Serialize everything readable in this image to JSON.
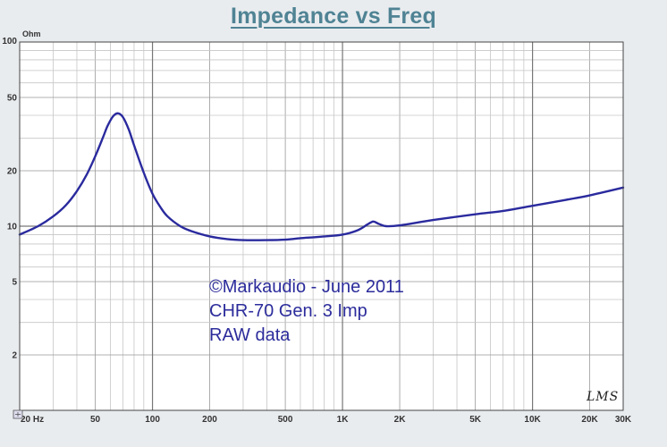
{
  "chart_data": {
    "type": "line",
    "title": "Impedance vs Freq",
    "ylabel": "Ohm",
    "xlabel": "",
    "xscale": "log",
    "yscale": "log",
    "xlim": [
      20,
      30000
    ],
    "ylim": [
      1,
      100
    ],
    "grid": true,
    "x_tick_labels": [
      {
        "value": 20,
        "label": "20 Hz"
      },
      {
        "value": 50,
        "label": "50"
      },
      {
        "value": 100,
        "label": "100"
      },
      {
        "value": 200,
        "label": "200"
      },
      {
        "value": 500,
        "label": "500"
      },
      {
        "value": 1000,
        "label": "1K"
      },
      {
        "value": 2000,
        "label": "2K"
      },
      {
        "value": 5000,
        "label": "5K"
      },
      {
        "value": 10000,
        "label": "10K"
      },
      {
        "value": 20000,
        "label": "20K"
      },
      {
        "value": 30000,
        "label": "30K"
      }
    ],
    "y_tick_labels": [
      {
        "value": 100,
        "label": "100"
      },
      {
        "value": 50,
        "label": "50"
      },
      {
        "value": 20,
        "label": "20"
      },
      {
        "value": 10,
        "label": "10"
      },
      {
        "value": 5,
        "label": "5"
      },
      {
        "value": 2,
        "label": "2"
      }
    ],
    "series": [
      {
        "color": "#2a2a9e",
        "x": [
          20,
          25,
          30,
          35,
          40,
          45,
          50,
          55,
          58,
          62,
          66,
          70,
          75,
          80,
          90,
          100,
          110,
          120,
          140,
          160,
          200,
          250,
          300,
          400,
          500,
          600,
          700,
          800,
          1000,
          1200,
          1350,
          1450,
          1550,
          1700,
          2000,
          3000,
          5000,
          7000,
          10000,
          15000,
          20000,
          30000
        ],
        "y": [
          9.0,
          10.0,
          11.3,
          13.0,
          15.5,
          19.0,
          24.0,
          30.5,
          35.0,
          39.5,
          41.0,
          39.0,
          33.5,
          27.5,
          19.5,
          15.0,
          12.7,
          11.3,
          10.0,
          9.4,
          8.8,
          8.5,
          8.4,
          8.4,
          8.45,
          8.6,
          8.7,
          8.8,
          9.0,
          9.5,
          10.2,
          10.6,
          10.3,
          10.0,
          10.1,
          10.8,
          11.6,
          12.1,
          12.9,
          13.9,
          14.7,
          16.2
        ]
      }
    ]
  },
  "annotation": {
    "lines": [
      "©Markaudio - June 2011",
      "CHR-70 Gen. 3  Imp",
      "RAW data"
    ],
    "mark": "LMS"
  }
}
